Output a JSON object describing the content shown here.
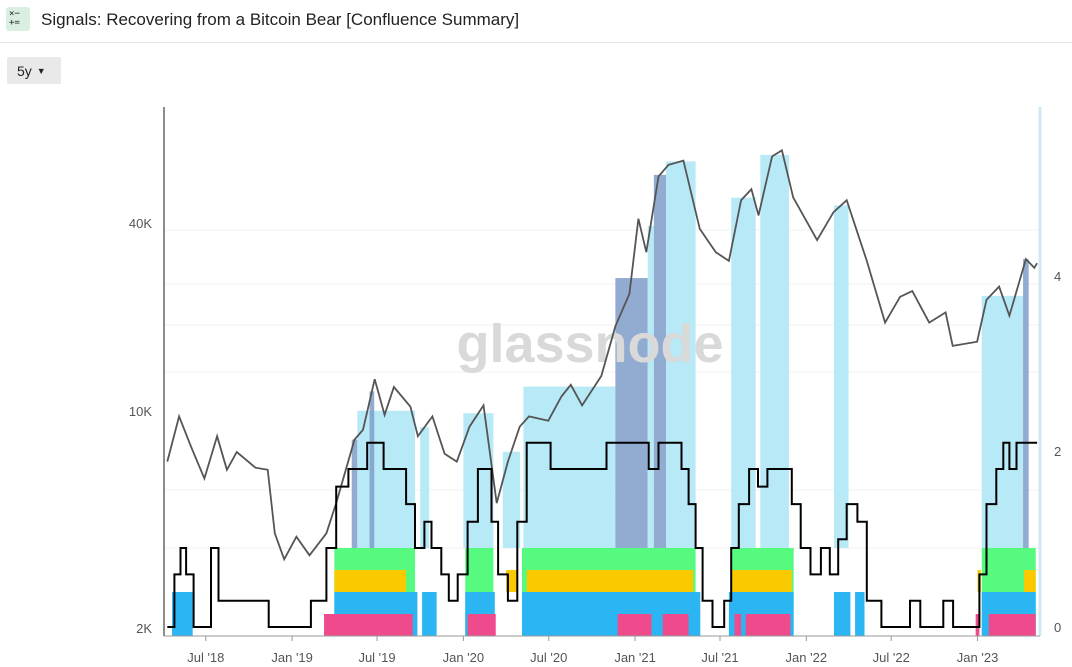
{
  "header": {
    "title": "Signals: Recovering from a Bitcoin Bear [Confluence Summary]",
    "icon": "calculator-icon"
  },
  "controls": {
    "range_label": "5y"
  },
  "watermark": "glassnode",
  "colors": {
    "price": "#555555",
    "score": "#000000",
    "light_blue": "#b3e8f5",
    "dark_blue": "#7f9cc9",
    "green": "#55fa7e",
    "yellow": "#fbc900",
    "blue": "#2bb5f3",
    "pink": "#ef4b8c"
  },
  "chart_data": {
    "type": "line",
    "x_type": "date",
    "x_ticks": [
      "Jul '18",
      "Jan '19",
      "Jul '19",
      "Jan '20",
      "Jul '20",
      "Jan '21",
      "Jul '21",
      "Jan '22",
      "Jul '22",
      "Jan '23"
    ],
    "y_left_ticks": [
      "2K",
      "10K",
      "40K"
    ],
    "y_left_scale": "log",
    "y_right_ticks": [
      "0",
      "2",
      "4"
    ],
    "y_right_range": [
      0,
      5.7
    ],
    "grid": true,
    "price_series": [
      [
        "2018-04-10",
        6800
      ],
      [
        "2018-05-05",
        9500
      ],
      [
        "2018-06-01",
        7500
      ],
      [
        "2018-06-28",
        6000
      ],
      [
        "2018-07-25",
        8200
      ],
      [
        "2018-08-15",
        6400
      ],
      [
        "2018-09-05",
        7300
      ],
      [
        "2018-10-15",
        6500
      ],
      [
        "2018-11-10",
        6400
      ],
      [
        "2018-11-25",
        4000
      ],
      [
        "2018-12-15",
        3300
      ],
      [
        "2019-01-10",
        3900
      ],
      [
        "2019-02-07",
        3400
      ],
      [
        "2019-03-15",
        4000
      ],
      [
        "2019-04-05",
        5000
      ],
      [
        "2019-05-14",
        8000
      ],
      [
        "2019-06-01",
        8600
      ],
      [
        "2019-06-26",
        12500
      ],
      [
        "2019-07-17",
        9600
      ],
      [
        "2019-08-06",
        11800
      ],
      [
        "2019-09-10",
        10200
      ],
      [
        "2019-09-26",
        8200
      ],
      [
        "2019-10-27",
        9500
      ],
      [
        "2019-11-22",
        7200
      ],
      [
        "2019-12-18",
        6800
      ],
      [
        "2020-01-14",
        8800
      ],
      [
        "2020-02-13",
        10300
      ],
      [
        "2020-03-12",
        5000
      ],
      [
        "2020-04-05",
        6800
      ],
      [
        "2020-04-30",
        8800
      ],
      [
        "2020-05-20",
        9500
      ],
      [
        "2020-06-30",
        9200
      ],
      [
        "2020-07-28",
        11000
      ],
      [
        "2020-08-17",
        12000
      ],
      [
        "2020-09-10",
        10300
      ],
      [
        "2020-10-21",
        12800
      ],
      [
        "2020-11-20",
        18500
      ],
      [
        "2020-12-20",
        23500
      ],
      [
        "2021-01-08",
        41000
      ],
      [
        "2021-01-25",
        32000
      ],
      [
        "2021-02-20",
        56000
      ],
      [
        "2021-03-13",
        61000
      ],
      [
        "2021-04-14",
        63000
      ],
      [
        "2021-05-19",
        38000
      ],
      [
        "2021-06-22",
        32000
      ],
      [
        "2021-07-20",
        30000
      ],
      [
        "2021-08-15",
        47000
      ],
      [
        "2021-09-06",
        51000
      ],
      [
        "2021-09-21",
        42000
      ],
      [
        "2021-10-20",
        65000
      ],
      [
        "2021-11-10",
        68000
      ],
      [
        "2021-12-04",
        48000
      ],
      [
        "2022-01-24",
        35000
      ],
      [
        "2022-02-28",
        43000
      ],
      [
        "2022-03-28",
        47000
      ],
      [
        "2022-05-10",
        30000
      ],
      [
        "2022-06-18",
        19000
      ],
      [
        "2022-07-20",
        23000
      ],
      [
        "2022-08-15",
        24000
      ],
      [
        "2022-09-20",
        19000
      ],
      [
        "2022-10-25",
        20500
      ],
      [
        "2022-11-09",
        16000
      ],
      [
        "2022-12-31",
        16500
      ],
      [
        "2023-01-20",
        22500
      ],
      [
        "2023-02-16",
        24800
      ],
      [
        "2023-03-10",
        20000
      ],
      [
        "2023-04-14",
        30400
      ],
      [
        "2023-05-02",
        28500
      ],
      [
        "2023-05-08",
        29500
      ]
    ],
    "score_series": [
      [
        "2018-04-10",
        0
      ],
      [
        "2018-04-25",
        0.6
      ],
      [
        "2018-05-08",
        0.9
      ],
      [
        "2018-05-20",
        0.6
      ],
      [
        "2018-06-05",
        0
      ],
      [
        "2018-07-01",
        0
      ],
      [
        "2018-07-12",
        0.9
      ],
      [
        "2018-07-28",
        0.3
      ],
      [
        "2018-08-20",
        0.3
      ],
      [
        "2018-10-10",
        0.3
      ],
      [
        "2018-11-12",
        0
      ],
      [
        "2019-01-15",
        0
      ],
      [
        "2019-02-10",
        0.3
      ],
      [
        "2019-03-01",
        0.3
      ],
      [
        "2019-03-15",
        0.9
      ],
      [
        "2019-04-05",
        1.6
      ],
      [
        "2019-05-01",
        1.8
      ],
      [
        "2019-05-25",
        1.8
      ],
      [
        "2019-06-10",
        2.1
      ],
      [
        "2019-06-28",
        2.1
      ],
      [
        "2019-07-15",
        1.8
      ],
      [
        "2019-08-20",
        1.8
      ],
      [
        "2019-09-01",
        1.4
      ],
      [
        "2019-09-20",
        0.9
      ],
      [
        "2019-10-10",
        1.2
      ],
      [
        "2019-10-25",
        0.9
      ],
      [
        "2019-11-15",
        0.6
      ],
      [
        "2019-12-01",
        0.3
      ],
      [
        "2019-12-20",
        0.6
      ],
      [
        "2020-01-10",
        1.2
      ],
      [
        "2020-02-01",
        1.8
      ],
      [
        "2020-02-20",
        1.8
      ],
      [
        "2020-03-01",
        1.2
      ],
      [
        "2020-03-15",
        0.6
      ],
      [
        "2020-04-05",
        0.3
      ],
      [
        "2020-04-25",
        1.2
      ],
      [
        "2020-05-15",
        2.1
      ],
      [
        "2020-06-15",
        2.1
      ],
      [
        "2020-07-05",
        1.8
      ],
      [
        "2020-08-01",
        1.8
      ],
      [
        "2020-09-10",
        1.8
      ],
      [
        "2020-10-10",
        1.8
      ],
      [
        "2020-11-01",
        2.1
      ],
      [
        "2020-12-15",
        2.1
      ],
      [
        "2021-01-10",
        2.1
      ],
      [
        "2021-01-30",
        1.8
      ],
      [
        "2021-02-20",
        2.1
      ],
      [
        "2021-03-20",
        2.1
      ],
      [
        "2021-04-10",
        1.8
      ],
      [
        "2021-04-25",
        1.4
      ],
      [
        "2021-05-10",
        0.9
      ],
      [
        "2021-05-25",
        0.3
      ],
      [
        "2021-06-15",
        0
      ],
      [
        "2021-07-10",
        0.3
      ],
      [
        "2021-07-25",
        0.9
      ],
      [
        "2021-08-10",
        1.4
      ],
      [
        "2021-09-01",
        1.8
      ],
      [
        "2021-09-20",
        1.6
      ],
      [
        "2021-10-10",
        1.8
      ],
      [
        "2021-11-10",
        1.8
      ],
      [
        "2021-12-01",
        1.4
      ],
      [
        "2021-12-20",
        0.9
      ],
      [
        "2022-01-10",
        0.6
      ],
      [
        "2022-02-01",
        0.9
      ],
      [
        "2022-02-20",
        0.6
      ],
      [
        "2022-03-10",
        1.0
      ],
      [
        "2022-03-28",
        1.4
      ],
      [
        "2022-04-20",
        1.2
      ],
      [
        "2022-05-10",
        0.3
      ],
      [
        "2022-06-10",
        0
      ],
      [
        "2022-07-20",
        0
      ],
      [
        "2022-08-10",
        0.3
      ],
      [
        "2022-09-01",
        0
      ],
      [
        "2022-10-20",
        0.3
      ],
      [
        "2022-11-10",
        0
      ],
      [
        "2022-12-20",
        0
      ],
      [
        "2023-01-05",
        0.6
      ],
      [
        "2023-01-20",
        1.4
      ],
      [
        "2023-02-10",
        1.8
      ],
      [
        "2023-02-25",
        2.1
      ],
      [
        "2023-03-10",
        1.8
      ],
      [
        "2023-03-25",
        2.1
      ],
      [
        "2023-04-15",
        2.1
      ],
      [
        "2023-05-08",
        2.1
      ]
    ],
    "bands": [
      {
        "from": "2019-05-08",
        "to": "2019-05-20",
        "kind": "dark_blue"
      },
      {
        "from": "2019-05-20",
        "to": "2019-09-20",
        "kind": "light_blue"
      },
      {
        "from": "2019-06-15",
        "to": "2019-06-25",
        "kind": "dark_blue"
      },
      {
        "from": "2019-10-01",
        "to": "2019-10-20",
        "kind": "light_blue"
      },
      {
        "from": "2020-01-01",
        "to": "2020-03-05",
        "kind": "light_blue"
      },
      {
        "from": "2020-03-25",
        "to": "2020-05-01",
        "kind": "light_blue"
      },
      {
        "from": "2020-05-08",
        "to": "2020-11-20",
        "kind": "light_blue"
      },
      {
        "from": "2020-11-20",
        "to": "2021-01-28",
        "kind": "dark_blue"
      },
      {
        "from": "2021-01-28",
        "to": "2021-02-10",
        "kind": "light_blue"
      },
      {
        "from": "2021-02-10",
        "to": "2021-03-08",
        "kind": "dark_blue"
      },
      {
        "from": "2021-03-08",
        "to": "2021-05-10",
        "kind": "light_blue"
      },
      {
        "from": "2021-07-25",
        "to": "2021-09-15",
        "kind": "light_blue"
      },
      {
        "from": "2021-09-25",
        "to": "2021-11-25",
        "kind": "light_blue"
      },
      {
        "from": "2022-03-01",
        "to": "2022-04-01",
        "kind": "light_blue"
      },
      {
        "from": "2023-01-10",
        "to": "2023-04-08",
        "kind": "light_blue"
      },
      {
        "from": "2023-04-08",
        "to": "2023-04-20",
        "kind": "dark_blue"
      }
    ],
    "signal_rows": [
      {
        "color": "pink",
        "level": 0,
        "ranges": [
          [
            "2019-03-10",
            "2019-09-15"
          ],
          [
            "2020-01-10",
            "2020-03-10"
          ],
          [
            "2020-11-25",
            "2021-02-05"
          ],
          [
            "2021-03-01",
            "2021-04-25"
          ],
          [
            "2021-08-01",
            "2021-08-15"
          ],
          [
            "2021-08-25",
            "2021-11-28"
          ],
          [
            "2022-12-28",
            "2023-01-05"
          ],
          [
            "2023-01-25",
            "2023-05-05"
          ]
        ]
      },
      {
        "color": "blue",
        "level": 1,
        "ranges": [
          [
            "2018-04-20",
            "2018-06-03"
          ],
          [
            "2019-04-01",
            "2019-09-25"
          ],
          [
            "2019-10-05",
            "2019-11-05"
          ],
          [
            "2020-01-05",
            "2020-03-08"
          ],
          [
            "2020-05-05",
            "2021-05-20"
          ],
          [
            "2021-07-20",
            "2021-12-05"
          ],
          [
            "2022-03-01",
            "2022-04-05"
          ],
          [
            "2022-04-15",
            "2022-05-05"
          ],
          [
            "2023-01-10",
            "2023-05-05"
          ]
        ]
      },
      {
        "color": "yellow",
        "level": 2,
        "ranges": [
          [
            "2019-04-01",
            "2019-09-01"
          ],
          [
            "2020-04-01",
            "2020-04-25"
          ],
          [
            "2020-05-15",
            "2021-05-05"
          ],
          [
            "2021-07-25",
            "2021-12-01"
          ],
          [
            "2023-01-01",
            "2023-01-08"
          ],
          [
            "2023-04-10",
            "2023-05-05"
          ]
        ]
      },
      {
        "color": "green",
        "level": 3,
        "ranges": [
          [
            "2019-04-01",
            "2019-09-20"
          ],
          [
            "2020-01-05",
            "2020-03-05"
          ],
          [
            "2020-05-05",
            "2021-05-10"
          ],
          [
            "2021-07-25",
            "2021-12-05"
          ],
          [
            "2023-01-10",
            "2023-05-05"
          ]
        ]
      }
    ]
  }
}
